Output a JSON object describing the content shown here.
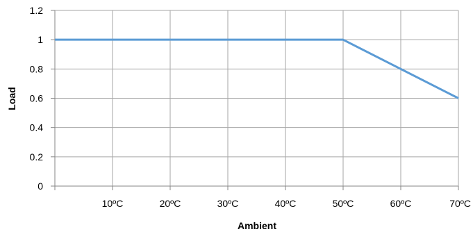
{
  "chart_data": {
    "type": "line",
    "title": "",
    "xlabel": "Ambient",
    "ylabel": "Load",
    "x_unit": "°C",
    "xlim": [
      0,
      70
    ],
    "ylim": [
      0,
      1.2
    ],
    "grid": true,
    "x_ticks": [
      10,
      20,
      30,
      40,
      50,
      60,
      70
    ],
    "x_tick_labels": [
      "10ºC",
      "20ºC",
      "30ºC",
      "40ºC",
      "50ºC",
      "60ºC",
      "70ºC"
    ],
    "y_ticks": [
      0,
      0.2,
      0.4,
      0.6,
      0.8,
      1,
      1.2
    ],
    "y_tick_labels": [
      "0",
      "0.2",
      "0.4",
      "0.6",
      "0.8",
      "1",
      "1.2"
    ],
    "series": [
      {
        "x": [
          0,
          50,
          70
        ],
        "y": [
          1,
          1,
          0.6
        ]
      }
    ],
    "colors": {
      "line": "#5B9BD5",
      "grid": "#A6A6A6",
      "axis": "#868686"
    }
  }
}
